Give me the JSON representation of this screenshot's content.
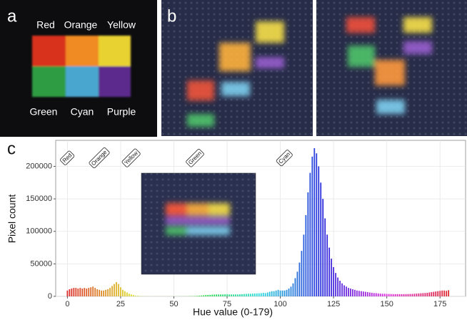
{
  "panel_a": {
    "label": "a",
    "top_labels": [
      "Red",
      "Orange",
      "Yellow"
    ],
    "bottom_labels": [
      "Green",
      "Cyan",
      "Purple"
    ]
  },
  "panel_b": {
    "label": "b"
  },
  "chart_data": {
    "type": "bar",
    "panel_label": "c",
    "x_label": "Hue value (0-179)",
    "y_label": "Pixel count",
    "colormap": "hsv",
    "grid": true,
    "xlim": [
      -5.5,
      187
    ],
    "xticks": [
      0,
      25,
      50,
      75,
      100,
      125,
      150,
      175
    ],
    "ylim": [
      0,
      240000
    ],
    "yticks": [
      0,
      50000,
      100000,
      150000,
      200000
    ],
    "annotations": [
      {
        "text": "Red",
        "x": 0
      },
      {
        "text": "Orange",
        "x": 15
      },
      {
        "text": "Yellow",
        "x": 30
      },
      {
        "text": "Green",
        "x": 60
      },
      {
        "text": "Cyan",
        "x": 102
      }
    ],
    "x": [
      0,
      1,
      2,
      3,
      4,
      5,
      6,
      7,
      8,
      9,
      10,
      11,
      12,
      13,
      14,
      15,
      16,
      17,
      18,
      19,
      20,
      21,
      22,
      23,
      24,
      25,
      26,
      27,
      28,
      29,
      30,
      31,
      32,
      33,
      34,
      35,
      36,
      37,
      38,
      39,
      40,
      41,
      42,
      43,
      44,
      45,
      46,
      47,
      48,
      49,
      50,
      51,
      52,
      53,
      54,
      55,
      56,
      57,
      58,
      59,
      60,
      61,
      62,
      63,
      64,
      65,
      66,
      67,
      68,
      69,
      70,
      71,
      72,
      73,
      74,
      75,
      76,
      77,
      78,
      79,
      80,
      81,
      82,
      83,
      84,
      85,
      86,
      87,
      88,
      89,
      90,
      91,
      92,
      93,
      94,
      95,
      96,
      97,
      98,
      99,
      100,
      101,
      102,
      103,
      104,
      105,
      106,
      107,
      108,
      109,
      110,
      111,
      112,
      113,
      114,
      115,
      116,
      117,
      118,
      119,
      120,
      121,
      122,
      123,
      124,
      125,
      126,
      127,
      128,
      129,
      130,
      131,
      132,
      133,
      134,
      135,
      136,
      137,
      138,
      139,
      140,
      141,
      142,
      143,
      144,
      145,
      146,
      147,
      148,
      149,
      150,
      151,
      152,
      153,
      154,
      155,
      156,
      157,
      158,
      159,
      160,
      161,
      162,
      163,
      164,
      165,
      166,
      167,
      168,
      169,
      170,
      171,
      172,
      173,
      174,
      175,
      176,
      177,
      178,
      179
    ],
    "values": [
      9000,
      11000,
      12000,
      13000,
      13000,
      12000,
      13000,
      12000,
      13000,
      12000,
      13000,
      14000,
      15000,
      13000,
      11000,
      10000,
      9000,
      9000,
      10000,
      11000,
      13000,
      16000,
      19000,
      22000,
      19000,
      14000,
      10000,
      8000,
      6000,
      4000,
      3000,
      2000,
      1000,
      800,
      500,
      300,
      200,
      200,
      100,
      100,
      100,
      100,
      100,
      100,
      100,
      100,
      100,
      100,
      100,
      100,
      100,
      100,
      100,
      100,
      100,
      200,
      200,
      300,
      300,
      400,
      500,
      700,
      1000,
      1300,
      1600,
      2000,
      2200,
      2400,
      2600,
      2800,
      3000,
      3000,
      3000,
      3000,
      3200,
      3200,
      3000,
      3000,
      3000,
      3000,
      3000,
      3200,
      3400,
      3600,
      3800,
      4000,
      4000,
      4200,
      4400,
      4600,
      4800,
      5000,
      5500,
      5000,
      6000,
      7000,
      8000,
      8000,
      9000,
      10000,
      9000,
      9000,
      9000,
      10000,
      12000,
      15000,
      20000,
      28000,
      38000,
      52000,
      70000,
      95000,
      125000,
      160000,
      190000,
      215000,
      228000,
      220000,
      200000,
      175000,
      150000,
      120000,
      95000,
      75000,
      58000,
      45000,
      36000,
      29000,
      24000,
      20000,
      17000,
      15000,
      13000,
      12000,
      11000,
      10000,
      9000,
      8500,
      8000,
      7500,
      7000,
      6500,
      6000,
      5500,
      5000,
      5000,
      4500,
      4200,
      4000,
      4000,
      3800,
      3700,
      3600,
      3500,
      3500,
      3500,
      3400,
      3400,
      3500,
      3500,
      3600,
      3700,
      3800,
      4000,
      4200,
      4500,
      4800,
      5000,
      5200,
      5500,
      6000,
      6500,
      7000,
      7500,
      8000,
      8500,
      9000,
      9000,
      8500,
      9500
    ]
  }
}
